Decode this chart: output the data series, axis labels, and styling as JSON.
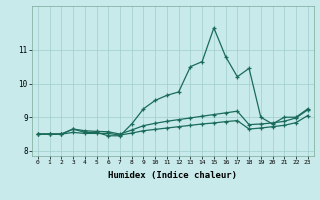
{
  "xlabel": "Humidex (Indice chaleur)",
  "xlim": [
    -0.5,
    23.5
  ],
  "ylim": [
    7.85,
    12.3
  ],
  "yticks": [
    8,
    9,
    10,
    11
  ],
  "xticks": [
    0,
    1,
    2,
    3,
    4,
    5,
    6,
    7,
    8,
    9,
    10,
    11,
    12,
    13,
    14,
    15,
    16,
    17,
    18,
    19,
    20,
    21,
    22,
    23
  ],
  "bg_color": "#c8eaea",
  "grid_color": "#a0cccc",
  "line_color": "#1a6b5a",
  "line1_x": [
    0,
    1,
    2,
    3,
    4,
    5,
    6,
    7,
    8,
    9,
    10,
    11,
    12,
    13,
    14,
    15,
    16,
    17,
    18,
    19,
    20,
    21,
    22,
    23
  ],
  "line1_y": [
    8.5,
    8.5,
    8.5,
    8.65,
    8.55,
    8.55,
    8.45,
    8.45,
    8.8,
    9.25,
    9.5,
    9.65,
    9.75,
    10.5,
    10.65,
    11.65,
    10.8,
    10.2,
    10.45,
    9.0,
    8.8,
    9.0,
    9.0,
    9.25
  ],
  "line2_x": [
    0,
    1,
    2,
    3,
    4,
    5,
    6,
    7,
    8,
    9,
    10,
    11,
    12,
    13,
    14,
    15,
    16,
    17,
    18,
    19,
    20,
    21,
    22,
    23
  ],
  "line2_y": [
    8.5,
    8.5,
    8.5,
    8.65,
    8.6,
    8.58,
    8.57,
    8.5,
    8.62,
    8.75,
    8.82,
    8.88,
    8.93,
    8.98,
    9.03,
    9.08,
    9.13,
    9.18,
    8.78,
    8.8,
    8.83,
    8.88,
    8.98,
    9.22
  ],
  "line3_x": [
    0,
    1,
    2,
    3,
    4,
    5,
    6,
    7,
    8,
    9,
    10,
    11,
    12,
    13,
    14,
    15,
    16,
    17,
    18,
    19,
    20,
    21,
    22,
    23
  ],
  "line3_y": [
    8.5,
    8.5,
    8.5,
    8.55,
    8.52,
    8.52,
    8.52,
    8.47,
    8.53,
    8.6,
    8.64,
    8.68,
    8.72,
    8.76,
    8.8,
    8.83,
    8.87,
    8.9,
    8.65,
    8.68,
    8.72,
    8.76,
    8.84,
    9.05
  ]
}
